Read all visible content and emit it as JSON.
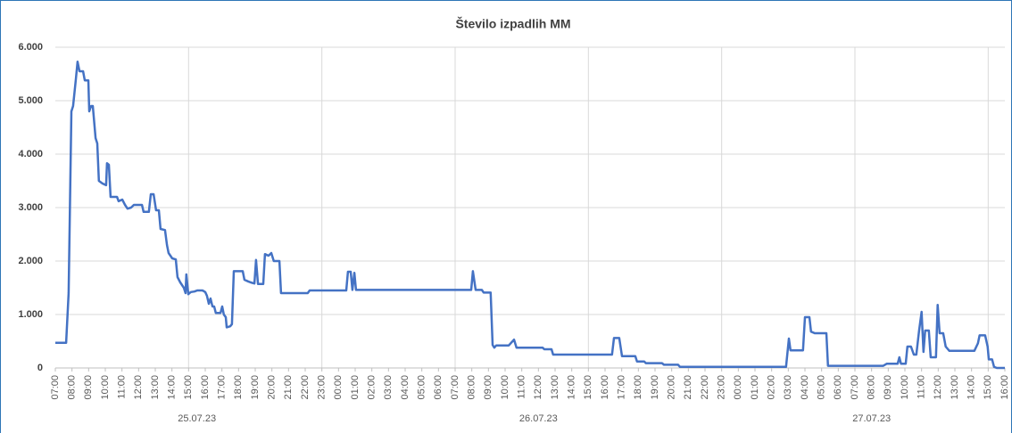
{
  "chart_data": {
    "type": "line",
    "title": "Število izpadlih MM",
    "series": [
      {
        "name": "Število izpadlih MM",
        "color": "#4472c4",
        "x": [
          "25.07.23 07:00",
          "25.07.23 07:39",
          "25.07.23 07:48",
          "25.07.23 07:58",
          "25.07.23 08:04",
          "25.07.23 08:14",
          "25.07.23 08:20",
          "25.07.23 08:27",
          "25.07.23 08:40",
          "25.07.23 08:46",
          "25.07.23 08:59",
          "25.07.23 09:02",
          "25.07.23 09:09",
          "25.07.23 09:15",
          "25.07.23 09:25",
          "25.07.23 09:31",
          "25.07.23 09:37",
          "25.07.23 09:50",
          "25.07.23 10:03",
          "25.07.23 10:06",
          "25.07.23 10:13",
          "25.07.23 10:19",
          "25.07.23 10:42",
          "25.07.23 10:48",
          "25.07.23 11:01",
          "25.07.23 11:11",
          "25.07.23 11:20",
          "25.07.23 11:33",
          "25.07.23 11:43",
          "25.07.23 11:59",
          "25.07.23 12:12",
          "25.07.23 12:18",
          "25.07.23 12:37",
          "25.07.23 12:44",
          "25.07.23 12:54",
          "25.07.23 13:03",
          "25.07.23 13:13",
          "25.07.23 13:19",
          "25.07.23 13:35",
          "25.07.23 13:42",
          "25.07.23 13:48",
          "25.07.23 14:01",
          "25.07.23 14:14",
          "25.07.23 14:20",
          "25.07.23 14:30",
          "25.07.23 14:43",
          "25.07.23 14:49",
          "25.07.23 14:52",
          "25.07.23 14:59",
          "25.07.23 15:08",
          "25.07.23 15:21",
          "25.07.23 15:31",
          "25.07.23 15:50",
          "25.07.23 16:00",
          "25.07.23 16:06",
          "25.07.23 16:13",
          "25.07.23 16:19",
          "25.07.23 16:26",
          "25.07.23 16:32",
          "25.07.23 16:38",
          "25.07.23 16:55",
          "25.07.23 17:01",
          "25.07.23 17:07",
          "25.07.23 17:14",
          "25.07.23 17:17",
          "25.07.23 17:30",
          "25.07.23 17:36",
          "25.07.23 17:43",
          "25.07.23 18:15",
          "25.07.23 18:21",
          "25.07.23 18:34",
          "25.07.23 18:44",
          "25.07.23 18:57",
          "25.07.23 19:03",
          "25.07.23 19:10",
          "25.07.23 19:29",
          "25.07.23 19:35",
          "25.07.23 19:48",
          "25.07.23 19:58",
          "25.07.23 20:07",
          "25.07.23 20:27",
          "25.07.23 20:33",
          "25.07.23 22:09",
          "25.07.23 22:16",
          "26.07.23 00:28",
          "26.07.23 00:34",
          "26.07.23 00:44",
          "26.07.23 00:50",
          "26.07.23 00:57",
          "26.07.23 01:03",
          "26.07.23 07:58",
          "26.07.23 08:04",
          "26.07.23 08:14",
          "26.07.23 08:36",
          "26.07.23 08:43",
          "26.07.23 09:08",
          "26.07.23 09:15",
          "26.07.23 09:21",
          "26.07.23 09:28",
          "26.07.23 10:13",
          "26.07.23 10:32",
          "26.07.23 10:41",
          "26.07.23 12:15",
          "26.07.23 12:21",
          "26.07.23 12:47",
          "26.07.23 12:53",
          "26.07.23 16:25",
          "26.07.23 16:32",
          "26.07.23 16:51",
          "26.07.23 17:01",
          "26.07.23 17:49",
          "26.07.23 17:55",
          "26.07.23 18:21",
          "26.07.23 18:27",
          "26.07.23 19:25",
          "26.07.23 19:32",
          "26.07.23 20:23",
          "26.07.23 20:30",
          "27.07.23 02:52",
          "27.07.23 03:02",
          "27.07.23 03:08",
          "27.07.23 03:53",
          "27.07.23 04:00",
          "27.07.23 04:16",
          "27.07.23 04:22",
          "27.07.23 04:35",
          "27.07.23 05:17",
          "27.07.23 05:23",
          "27.07.23 08:42",
          "27.07.23 08:55",
          "27.07.23 09:34",
          "27.07.23 09:40",
          "27.07.23 09:46",
          "27.07.23 10:03",
          "27.07.23 10:09",
          "27.07.23 10:22",
          "27.07.23 10:32",
          "27.07.23 10:41",
          "27.07.23 10:51",
          "27.07.23 11:00",
          "27.07.23 11:07",
          "27.07.23 11:13",
          "27.07.23 11:26",
          "27.07.23 11:33",
          "27.07.23 11:52",
          "27.07.23 11:58",
          "27.07.23 12:05",
          "27.07.23 12:18",
          "27.07.23 12:27",
          "27.07.23 12:40",
          "27.07.23 14:10",
          "27.07.23 14:23",
          "27.07.23 14:29",
          "27.07.23 14:49",
          "27.07.23 14:58",
          "27.07.23 15:02",
          "27.07.23 15:14",
          "27.07.23 15:21",
          "27.07.23 15:31",
          "27.07.23 16:00"
        ],
        "values": [
          470,
          470,
          1400,
          4800,
          4900,
          5400,
          5730,
          5550,
          5550,
          5380,
          5380,
          4800,
          4900,
          4900,
          4300,
          4200,
          3500,
          3450,
          3420,
          3830,
          3800,
          3200,
          3200,
          3120,
          3150,
          3050,
          2980,
          3000,
          3050,
          3050,
          3050,
          2920,
          2920,
          3250,
          3250,
          2950,
          2950,
          2600,
          2580,
          2300,
          2150,
          2050,
          2030,
          1700,
          1600,
          1500,
          1400,
          1750,
          1380,
          1420,
          1430,
          1450,
          1450,
          1420,
          1350,
          1200,
          1300,
          1150,
          1150,
          1030,
          1030,
          1150,
          1000,
          950,
          760,
          780,
          820,
          1810,
          1810,
          1650,
          1620,
          1600,
          1580,
          2020,
          1570,
          1570,
          2130,
          2100,
          2150,
          2000,
          2000,
          1400,
          1400,
          1450,
          1450,
          1800,
          1800,
          1460,
          1780,
          1460,
          1460,
          1810,
          1460,
          1460,
          1410,
          1410,
          430,
          380,
          420,
          420,
          530,
          380,
          380,
          350,
          350,
          250,
          250,
          560,
          560,
          220,
          220,
          120,
          120,
          90,
          90,
          60,
          60,
          20,
          20,
          550,
          330,
          330,
          950,
          950,
          680,
          650,
          650,
          40,
          40,
          80,
          80,
          200,
          80,
          80,
          400,
          400,
          250,
          250,
          700,
          1050,
          300,
          700,
          700,
          200,
          200,
          1180,
          650,
          650,
          400,
          320,
          320,
          460,
          610,
          610,
          400,
          160,
          160,
          20,
          0,
          0
        ]
      }
    ],
    "xlim": [
      "25.07.23 07:00",
      "27.07.23 16:00"
    ],
    "xticks": [
      {
        "value": "25.07.23 07:00",
        "label": "07:00"
      },
      {
        "value": "25.07.23 08:00",
        "label": "08:00"
      },
      {
        "value": "25.07.23 09:00",
        "label": "09:00"
      },
      {
        "value": "25.07.23 10:00",
        "label": "10:00"
      },
      {
        "value": "25.07.23 11:00",
        "label": "11:00"
      },
      {
        "value": "25.07.23 12:00",
        "label": "12:00"
      },
      {
        "value": "25.07.23 13:00",
        "label": "13:00"
      },
      {
        "value": "25.07.23 14:00",
        "label": "14:00"
      },
      {
        "value": "25.07.23 15:00",
        "label": "15:00"
      },
      {
        "value": "25.07.23 16:00",
        "label": "16:00"
      },
      {
        "value": "25.07.23 17:00",
        "label": "17:00"
      },
      {
        "value": "25.07.23 18:00",
        "label": "18:00"
      },
      {
        "value": "25.07.23 19:00",
        "label": "19:00"
      },
      {
        "value": "25.07.23 20:00",
        "label": "20:00"
      },
      {
        "value": "25.07.23 21:00",
        "label": "21:00"
      },
      {
        "value": "25.07.23 22:00",
        "label": "22:00"
      },
      {
        "value": "25.07.23 23:00",
        "label": "23:00"
      },
      {
        "value": "26.07.23 00:00",
        "label": "00:00"
      },
      {
        "value": "26.07.23 01:00",
        "label": "01:00"
      },
      {
        "value": "26.07.23 02:00",
        "label": "02:00"
      },
      {
        "value": "26.07.23 03:00",
        "label": "03:00"
      },
      {
        "value": "26.07.23 04:00",
        "label": "04:00"
      },
      {
        "value": "26.07.23 05:00",
        "label": "05:00"
      },
      {
        "value": "26.07.23 06:00",
        "label": "06:00"
      },
      {
        "value": "26.07.23 07:00",
        "label": "07:00"
      },
      {
        "value": "26.07.23 08:00",
        "label": "08:00"
      },
      {
        "value": "26.07.23 09:00",
        "label": "09:00"
      },
      {
        "value": "26.07.23 10:00",
        "label": "10:00"
      },
      {
        "value": "26.07.23 11:00",
        "label": "11:00"
      },
      {
        "value": "26.07.23 12:00",
        "label": "12:00"
      },
      {
        "value": "26.07.23 13:00",
        "label": "13:00"
      },
      {
        "value": "26.07.23 14:00",
        "label": "14:00"
      },
      {
        "value": "26.07.23 15:00",
        "label": "15:00"
      },
      {
        "value": "26.07.23 16:00",
        "label": "16:00"
      },
      {
        "value": "26.07.23 17:00",
        "label": "17:00"
      },
      {
        "value": "26.07.23 18:00",
        "label": "18:00"
      },
      {
        "value": "26.07.23 19:00",
        "label": "19:00"
      },
      {
        "value": "26.07.23 20:00",
        "label": "20:00"
      },
      {
        "value": "26.07.23 21:00",
        "label": "21:00"
      },
      {
        "value": "26.07.23 22:00",
        "label": "22:00"
      },
      {
        "value": "26.07.23 23:00",
        "label": "23:00"
      },
      {
        "value": "27.07.23 00:00",
        "label": "00:00"
      },
      {
        "value": "27.07.23 01:00",
        "label": "01:00"
      },
      {
        "value": "27.07.23 02:00",
        "label": "02:00"
      },
      {
        "value": "27.07.23 03:00",
        "label": "03:00"
      },
      {
        "value": "27.07.23 04:00",
        "label": "04:00"
      },
      {
        "value": "27.07.23 05:00",
        "label": "05:00"
      },
      {
        "value": "27.07.23 06:00",
        "label": "06:00"
      },
      {
        "value": "27.07.23 07:00",
        "label": "07:00"
      },
      {
        "value": "27.07.23 08:00",
        "label": "08:00"
      },
      {
        "value": "27.07.23 09:00",
        "label": "09:00"
      },
      {
        "value": "27.07.23 10:00",
        "label": "10:00"
      },
      {
        "value": "27.07.23 11:00",
        "label": "11:00"
      },
      {
        "value": "27.07.23 12:00",
        "label": "12:00"
      },
      {
        "value": "27.07.23 13:00",
        "label": "13:00"
      },
      {
        "value": "27.07.23 14:00",
        "label": "14:00"
      },
      {
        "value": "27.07.23 15:00",
        "label": "15:00"
      },
      {
        "value": "27.07.23 16:00",
        "label": "16:00"
      }
    ],
    "x_groups": [
      "25.07.23",
      "26.07.23",
      "27.07.23"
    ],
    "ylim": [
      0,
      6000
    ],
    "yticks": [
      0,
      {
        "value": 1000,
        "label": "1.000"
      },
      {
        "value": 2000,
        "label": "2.000"
      },
      {
        "value": 3000,
        "label": "3.000"
      },
      {
        "value": 4000,
        "label": "4.000"
      },
      {
        "value": 5000,
        "label": "5.000"
      },
      {
        "value": 6000,
        "label": "6.000"
      }
    ],
    "grid": true
  }
}
